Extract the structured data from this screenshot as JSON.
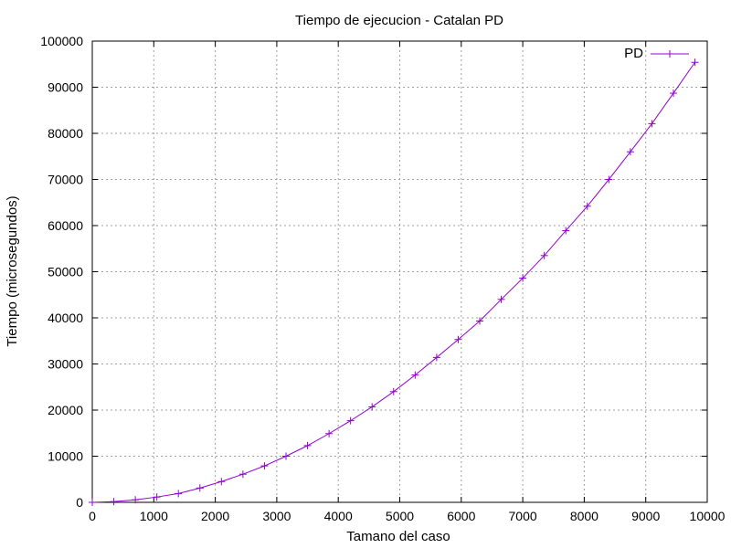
{
  "chart_data": {
    "type": "line",
    "title": "Tiempo de ejecucion - Catalan PD",
    "xlabel": "Tamano del caso",
    "ylabel": "Tiempo (microsegundos)",
    "xlim": [
      0,
      10000
    ],
    "ylim": [
      0,
      100000
    ],
    "x_ticks": [
      0,
      1000,
      2000,
      3000,
      4000,
      5000,
      6000,
      7000,
      8000,
      9000,
      10000
    ],
    "y_ticks": [
      0,
      10000,
      20000,
      30000,
      40000,
      50000,
      60000,
      70000,
      80000,
      90000,
      100000
    ],
    "x_tick_labels": [
      "0",
      "1000",
      "2000",
      "3000",
      "4000",
      "5000",
      "6000",
      "7000",
      "8000",
      "9000",
      "10000"
    ],
    "y_tick_labels": [
      "0",
      "10000",
      "20000",
      "30000",
      "40000",
      "50000",
      "60000",
      "70000",
      "80000",
      "90000",
      "100000"
    ],
    "grid": true,
    "legend_position": "top-right",
    "series": [
      {
        "name": "PD",
        "color": "#9400d3",
        "marker": "plus",
        "x": [
          0,
          350,
          700,
          1050,
          1400,
          1750,
          2100,
          2450,
          2800,
          3150,
          3500,
          3850,
          4200,
          4550,
          4900,
          5250,
          5600,
          5950,
          6300,
          6650,
          7000,
          7350,
          7700,
          8050,
          8400,
          8750,
          9100,
          9450,
          9800
        ],
        "y": [
          0,
          150,
          550,
          1150,
          1900,
          3100,
          4500,
          6100,
          7900,
          10000,
          12300,
          14900,
          17700,
          20700,
          24000,
          27600,
          31400,
          35300,
          39300,
          44000,
          48600,
          53500,
          58900,
          64200,
          70000,
          76000,
          82100,
          88700,
          95400
        ]
      }
    ]
  }
}
